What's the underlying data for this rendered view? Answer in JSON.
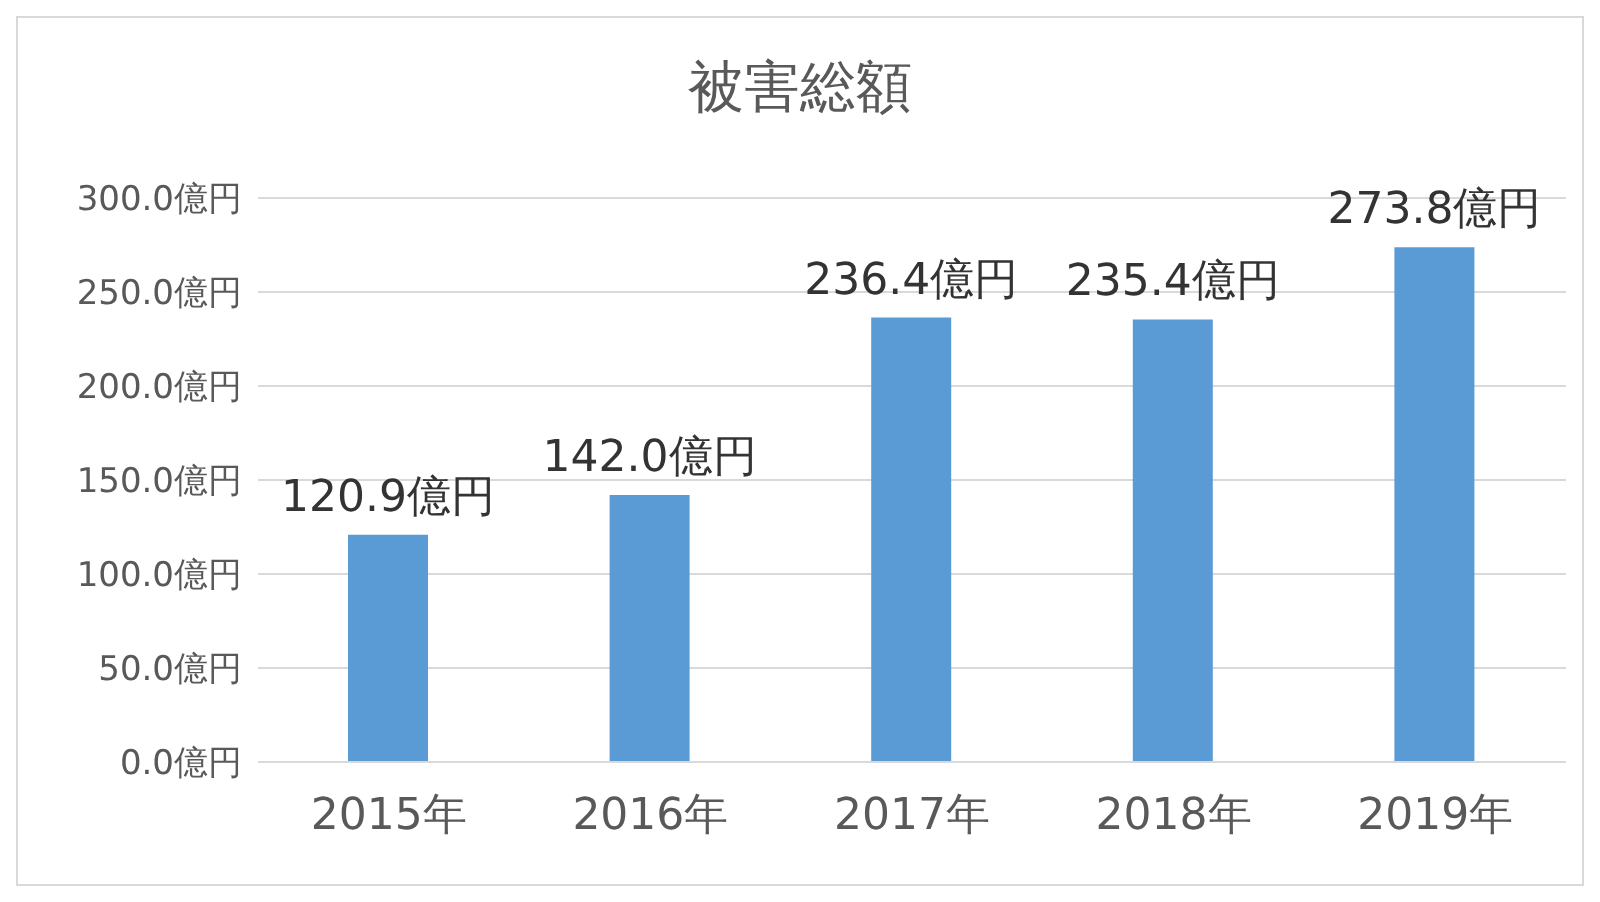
{
  "chart_data": {
    "type": "bar",
    "title": "被害総額",
    "categories": [
      "2015年",
      "2016年",
      "2017年",
      "2018年",
      "2019年"
    ],
    "values": [
      120.9,
      142.0,
      236.4,
      235.4,
      273.8
    ],
    "value_labels": [
      "120.9億円",
      "142.0億円",
      "236.4億円",
      "235.4億円",
      "273.8億円"
    ],
    "color": "#5b9bd5",
    "ylim": [
      0,
      300
    ],
    "yticks": [
      {
        "value": 0,
        "label": "0.0億円"
      },
      {
        "value": 50,
        "label": "50.0億円"
      },
      {
        "value": 100,
        "label": "100.0億円"
      },
      {
        "value": 150,
        "label": "150.0億円"
      },
      {
        "value": 200,
        "label": "200.0億円"
      },
      {
        "value": 250,
        "label": "250.0億円"
      },
      {
        "value": 300,
        "label": "300.0億円"
      }
    ],
    "grid": "y",
    "legend": false
  }
}
